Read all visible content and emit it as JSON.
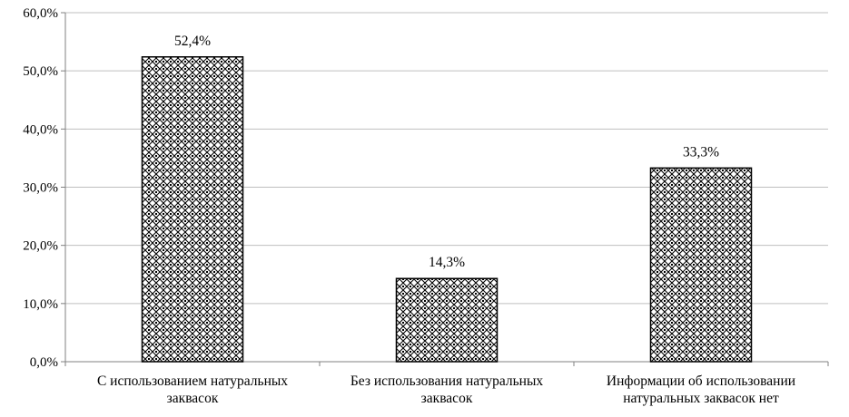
{
  "chart_data": {
    "type": "bar",
    "categories": [
      [
        "С использованием натуральных",
        "заквасок"
      ],
      [
        "Без использования натуральных",
        "заквасок"
      ],
      [
        "Информации об использовании",
        "натуральных заквасок нет"
      ]
    ],
    "values": [
      52.4,
      14.3,
      33.3
    ],
    "data_labels": [
      "52,4%",
      "14,3%",
      "33,3%"
    ],
    "ylim": [
      0,
      60
    ],
    "yticks": [
      0,
      10,
      20,
      30,
      40,
      50,
      60
    ],
    "ytick_labels": [
      "0,0%",
      "10,0%",
      "20,0%",
      "30,0%",
      "40,0%",
      "50,0%",
      "60,0%"
    ],
    "title": "",
    "xlabel": "",
    "ylabel": "",
    "grid": true,
    "legend": "none",
    "colors": {
      "bar_fill_pattern": "#000000",
      "bar_background": "#ffffff",
      "grid": "#bfbfbf",
      "axis": "#808080"
    }
  }
}
